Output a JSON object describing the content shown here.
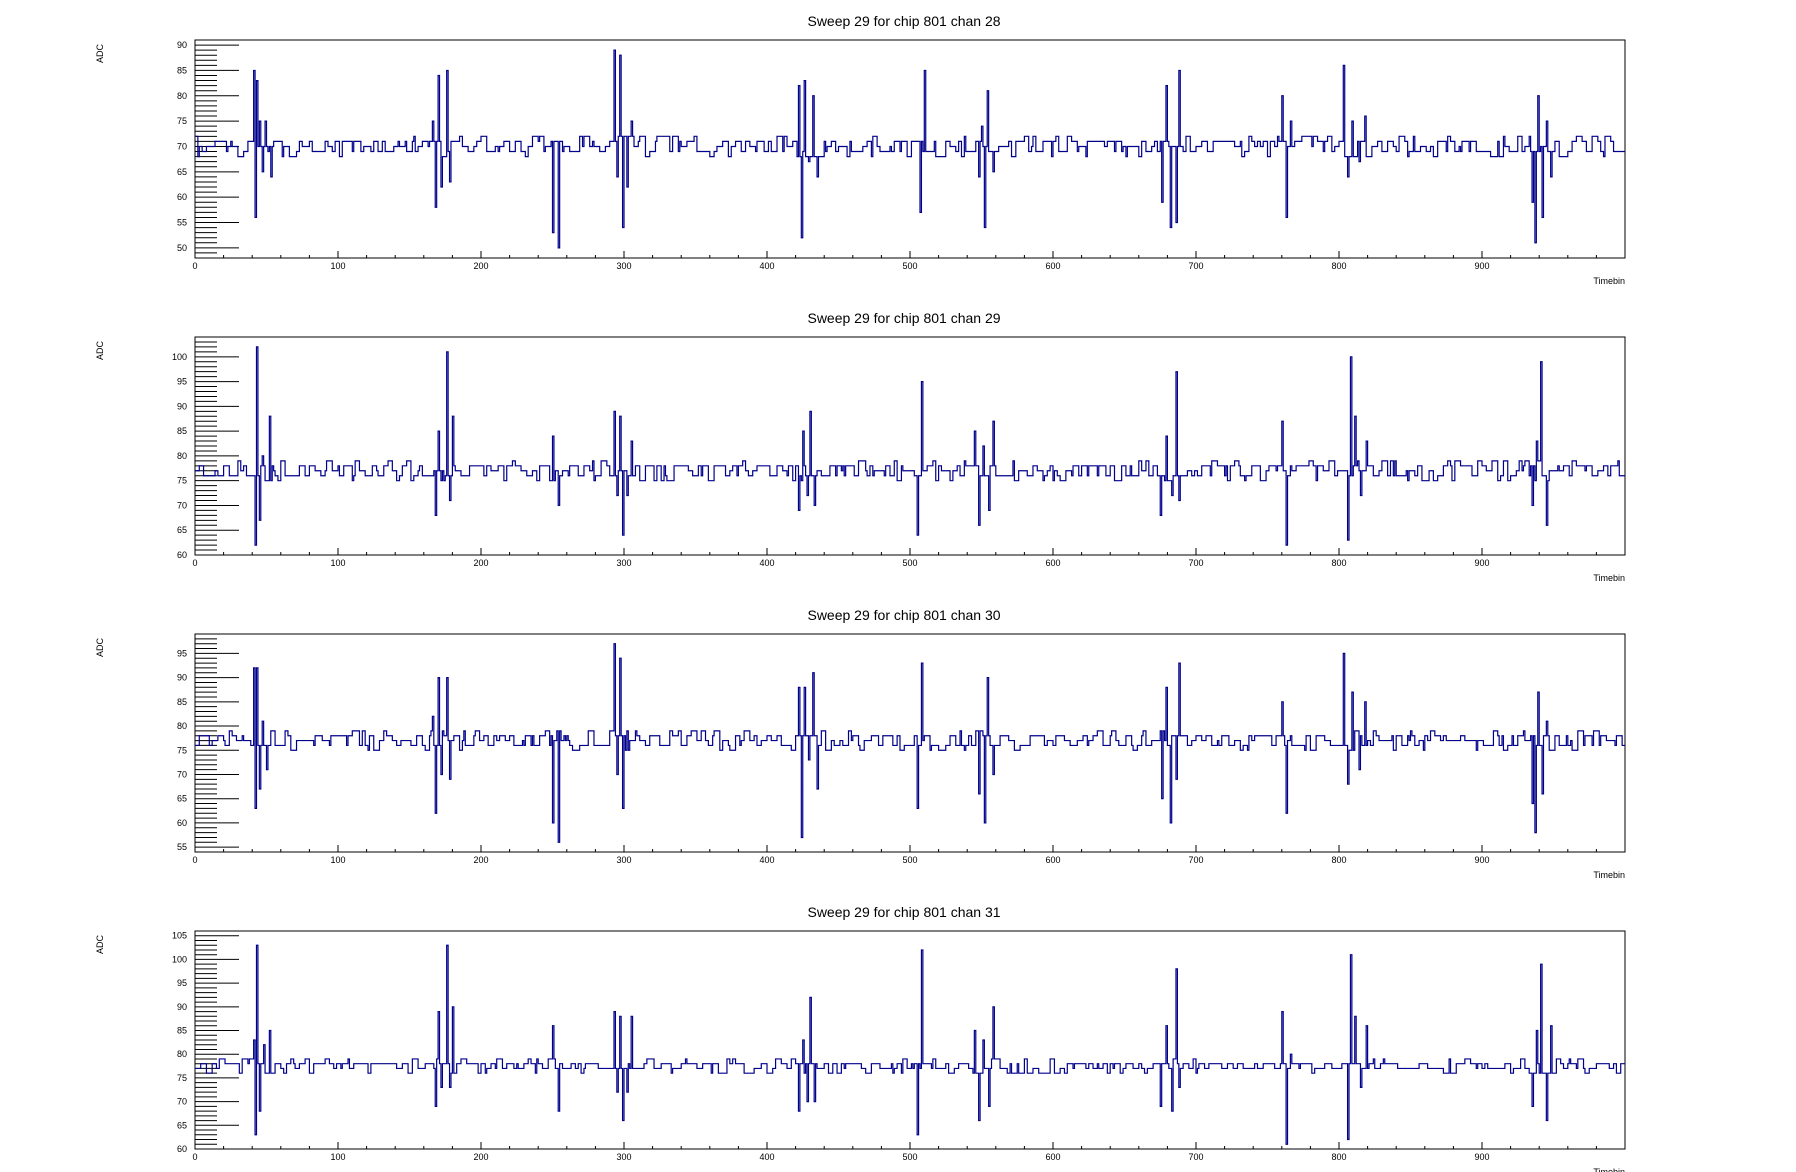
{
  "colors": {
    "trace": "#00008b",
    "axis": "#000000",
    "background": "#ffffff"
  },
  "chart_data": [
    {
      "type": "line",
      "title": "Sweep 29 for chip 801 chan 28",
      "xlabel": "Timebin",
      "ylabel": "ADC",
      "xlim": [
        0,
        1000
      ],
      "ylim": [
        48,
        91
      ],
      "xticks": [
        0,
        100,
        200,
        300,
        400,
        500,
        600,
        700,
        800,
        900
      ],
      "yticks": [
        50,
        55,
        60,
        65,
        70,
        75,
        80,
        85,
        90
      ],
      "baseline": 69.5,
      "noise": 1.5,
      "spikes": [
        [
          41,
          85
        ],
        [
          42,
          56
        ],
        [
          43,
          83
        ],
        [
          45,
          75
        ],
        [
          47,
          65
        ],
        [
          49,
          75
        ],
        [
          53,
          64
        ],
        [
          166,
          75
        ],
        [
          168,
          58
        ],
        [
          170,
          84
        ],
        [
          172,
          62
        ],
        [
          176,
          85
        ],
        [
          178,
          63
        ],
        [
          250,
          53
        ],
        [
          254,
          50
        ],
        [
          293,
          89
        ],
        [
          295,
          64
        ],
        [
          297,
          88
        ],
        [
          299,
          54
        ],
        [
          302,
          62
        ],
        [
          305,
          75
        ],
        [
          422,
          82
        ],
        [
          424,
          52
        ],
        [
          426,
          83
        ],
        [
          429,
          67
        ],
        [
          432,
          80
        ],
        [
          435,
          64
        ],
        [
          507,
          57
        ],
        [
          510,
          85
        ],
        [
          548,
          64
        ],
        [
          550,
          74
        ],
        [
          552,
          54
        ],
        [
          554,
          81
        ],
        [
          558,
          65
        ],
        [
          676,
          59
        ],
        [
          679,
          82
        ],
        [
          682,
          54
        ],
        [
          686,
          55
        ],
        [
          688,
          85
        ],
        [
          760,
          80
        ],
        [
          763,
          56
        ],
        [
          766,
          75
        ],
        [
          803,
          86
        ],
        [
          806,
          64
        ],
        [
          809,
          75
        ],
        [
          814,
          67
        ],
        [
          818,
          76
        ],
        [
          935,
          59
        ],
        [
          937,
          51
        ],
        [
          939,
          80
        ],
        [
          942,
          56
        ],
        [
          945,
          75
        ],
        [
          948,
          64
        ]
      ]
    },
    {
      "type": "line",
      "title": "Sweep 29 for chip 801 chan 29",
      "xlabel": "Timebin",
      "ylabel": "ADC",
      "xlim": [
        0,
        1000
      ],
      "ylim": [
        60,
        104
      ],
      "xticks": [
        0,
        100,
        200,
        300,
        400,
        500,
        600,
        700,
        800,
        900
      ],
      "yticks": [
        60,
        65,
        70,
        75,
        80,
        85,
        90,
        95,
        100
      ],
      "baseline": 76.8,
      "noise": 1.5,
      "spikes": [
        [
          42,
          62
        ],
        [
          43,
          102
        ],
        [
          45,
          67
        ],
        [
          47,
          80
        ],
        [
          52,
          88
        ],
        [
          168,
          68
        ],
        [
          170,
          85
        ],
        [
          172,
          75
        ],
        [
          176,
          101
        ],
        [
          178,
          71
        ],
        [
          180,
          88
        ],
        [
          250,
          84
        ],
        [
          254,
          70
        ],
        [
          293,
          89
        ],
        [
          295,
          72
        ],
        [
          297,
          88
        ],
        [
          299,
          64
        ],
        [
          302,
          72
        ],
        [
          305,
          83
        ],
        [
          422,
          69
        ],
        [
          425,
          85
        ],
        [
          428,
          72
        ],
        [
          430,
          89
        ],
        [
          433,
          70
        ],
        [
          505,
          64
        ],
        [
          508,
          95
        ],
        [
          545,
          85
        ],
        [
          548,
          66
        ],
        [
          551,
          82
        ],
        [
          555,
          69
        ],
        [
          558,
          87
        ],
        [
          675,
          68
        ],
        [
          679,
          84
        ],
        [
          683,
          72
        ],
        [
          686,
          97
        ],
        [
          688,
          71
        ],
        [
          760,
          87
        ],
        [
          763,
          62
        ],
        [
          766,
          78
        ],
        [
          806,
          63
        ],
        [
          808,
          100
        ],
        [
          811,
          88
        ],
        [
          815,
          72
        ],
        [
          819,
          83
        ],
        [
          935,
          70
        ],
        [
          938,
          83
        ],
        [
          941,
          99
        ],
        [
          945,
          66
        ],
        [
          948,
          77
        ]
      ]
    },
    {
      "type": "line",
      "title": "Sweep 29 for chip 801 chan 30",
      "xlabel": "Timebin",
      "ylabel": "ADC",
      "xlim": [
        0,
        1000
      ],
      "ylim": [
        54,
        99
      ],
      "xticks": [
        0,
        100,
        200,
        300,
        400,
        500,
        600,
        700,
        800,
        900
      ],
      "yticks": [
        55,
        60,
        65,
        70,
        75,
        80,
        85,
        90,
        95
      ],
      "baseline": 76.5,
      "noise": 1.5,
      "spikes": [
        [
          41,
          92
        ],
        [
          42,
          63
        ],
        [
          43,
          92
        ],
        [
          45,
          67
        ],
        [
          47,
          81
        ],
        [
          50,
          71
        ],
        [
          166,
          82
        ],
        [
          168,
          62
        ],
        [
          170,
          90
        ],
        [
          172,
          70
        ],
        [
          176,
          90
        ],
        [
          178,
          69
        ],
        [
          250,
          60
        ],
        [
          254,
          56
        ],
        [
          258,
          78
        ],
        [
          293,
          97
        ],
        [
          295,
          70
        ],
        [
          297,
          94
        ],
        [
          299,
          63
        ],
        [
          302,
          79
        ],
        [
          422,
          88
        ],
        [
          424,
          57
        ],
        [
          426,
          88
        ],
        [
          429,
          73
        ],
        [
          432,
          91
        ],
        [
          435,
          67
        ],
        [
          505,
          63
        ],
        [
          508,
          93
        ],
        [
          548,
          66
        ],
        [
          550,
          79
        ],
        [
          552,
          60
        ],
        [
          554,
          90
        ],
        [
          558,
          70
        ],
        [
          676,
          65
        ],
        [
          679,
          88
        ],
        [
          682,
          60
        ],
        [
          686,
          69
        ],
        [
          688,
          93
        ],
        [
          760,
          85
        ],
        [
          763,
          62
        ],
        [
          766,
          78
        ],
        [
          803,
          95
        ],
        [
          806,
          68
        ],
        [
          809,
          87
        ],
        [
          814,
          71
        ],
        [
          818,
          85
        ],
        [
          935,
          64
        ],
        [
          937,
          58
        ],
        [
          939,
          87
        ],
        [
          942,
          66
        ],
        [
          945,
          81
        ]
      ]
    },
    {
      "type": "line",
      "title": "Sweep 29 for chip 801 chan 31",
      "xlabel": "Timebin",
      "ylabel": "ADC",
      "xlim": [
        0,
        1000
      ],
      "ylim": [
        60,
        106
      ],
      "xticks": [
        0,
        100,
        200,
        300,
        400,
        500,
        600,
        700,
        800,
        900
      ],
      "yticks": [
        60,
        65,
        70,
        75,
        80,
        85,
        90,
        95,
        100,
        105
      ],
      "baseline": 77.5,
      "noise": 1.3,
      "spikes": [
        [
          41,
          83
        ],
        [
          42,
          63
        ],
        [
          43,
          103
        ],
        [
          45,
          68
        ],
        [
          48,
          82
        ],
        [
          52,
          85
        ],
        [
          168,
          69
        ],
        [
          170,
          89
        ],
        [
          172,
          73
        ],
        [
          176,
          103
        ],
        [
          178,
          73
        ],
        [
          180,
          90
        ],
        [
          250,
          86
        ],
        [
          254,
          68
        ],
        [
          293,
          89
        ],
        [
          295,
          72
        ],
        [
          297,
          88
        ],
        [
          299,
          66
        ],
        [
          302,
          72
        ],
        [
          305,
          88
        ],
        [
          422,
          68
        ],
        [
          425,
          83
        ],
        [
          428,
          70
        ],
        [
          430,
          92
        ],
        [
          433,
          70
        ],
        [
          505,
          63
        ],
        [
          508,
          102
        ],
        [
          545,
          85
        ],
        [
          548,
          66
        ],
        [
          551,
          83
        ],
        [
          555,
          69
        ],
        [
          558,
          90
        ],
        [
          675,
          69
        ],
        [
          679,
          86
        ],
        [
          683,
          68
        ],
        [
          686,
          98
        ],
        [
          688,
          73
        ],
        [
          760,
          89
        ],
        [
          763,
          61
        ],
        [
          766,
          80
        ],
        [
          806,
          62
        ],
        [
          808,
          101
        ],
        [
          811,
          88
        ],
        [
          815,
          73
        ],
        [
          819,
          86
        ],
        [
          935,
          69
        ],
        [
          938,
          85
        ],
        [
          941,
          99
        ],
        [
          945,
          66
        ],
        [
          948,
          86
        ]
      ]
    }
  ]
}
